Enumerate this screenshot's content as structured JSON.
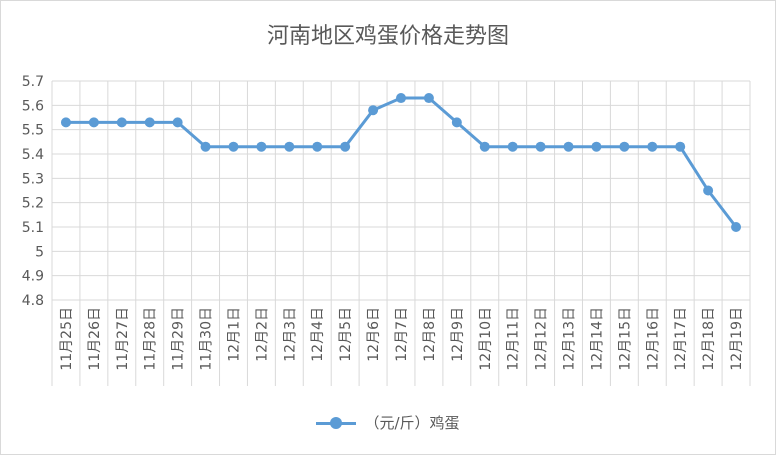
{
  "chart_data": {
    "type": "line",
    "title": "河南地区鸡蛋价格走势图",
    "categories": [
      "11月25日",
      "11月26日",
      "11月27日",
      "11月28日",
      "11月29日",
      "11月30日",
      "12月1日",
      "12月2日",
      "12月3日",
      "12月4日",
      "12月5日",
      "12月6日",
      "12月7日",
      "12月8日",
      "12月9日",
      "12月10日",
      "12月11日",
      "12月12日",
      "12月13日",
      "12月14日",
      "12月15日",
      "12月16日",
      "12月17日",
      "12月18日",
      "12月19日"
    ],
    "series": [
      {
        "name": "（元/斤）鸡蛋",
        "values": [
          5.53,
          5.53,
          5.53,
          5.53,
          5.53,
          5.43,
          5.43,
          5.43,
          5.43,
          5.43,
          5.43,
          5.58,
          5.63,
          5.63,
          5.53,
          5.43,
          5.43,
          5.43,
          5.43,
          5.43,
          5.43,
          5.43,
          5.43,
          5.25,
          5.1
        ]
      }
    ],
    "ylim": [
      4.8,
      5.7
    ],
    "yticks": [
      "5.7",
      "5.6",
      "5.5",
      "5.4",
      "5.3",
      "5.2",
      "5.1",
      "5",
      "4.9",
      "4.8"
    ],
    "grid": true,
    "legend_position": "bottom",
    "line_color": "#5b9bd5"
  }
}
